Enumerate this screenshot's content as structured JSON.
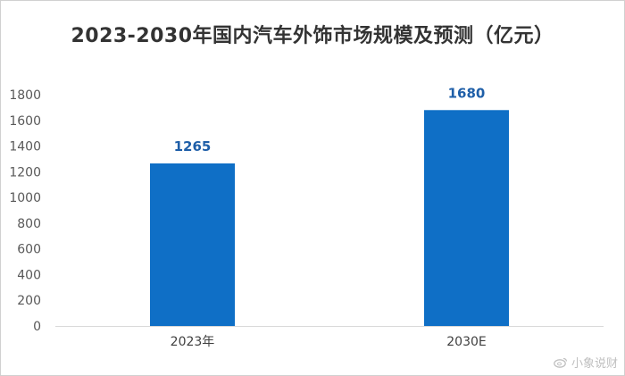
{
  "chart_data": {
    "type": "bar",
    "title": "2023-2030年国内汽车外饰市场规模及预测（亿元）",
    "categories": [
      "2023年",
      "2030E"
    ],
    "values": [
      1265,
      1680
    ],
    "data_labels": [
      "1265",
      "1680"
    ],
    "xlabel": "",
    "ylabel": "",
    "ylim": [
      0,
      1800
    ],
    "yticks": [
      0,
      200,
      400,
      600,
      800,
      1000,
      1200,
      1400,
      1600,
      1800
    ],
    "grid": false,
    "legend": "none",
    "bar_color": "#0f6fc6",
    "label_color": "#1f5fa8"
  },
  "watermark": {
    "text": "小象说财",
    "icon": "weibo-icon"
  }
}
